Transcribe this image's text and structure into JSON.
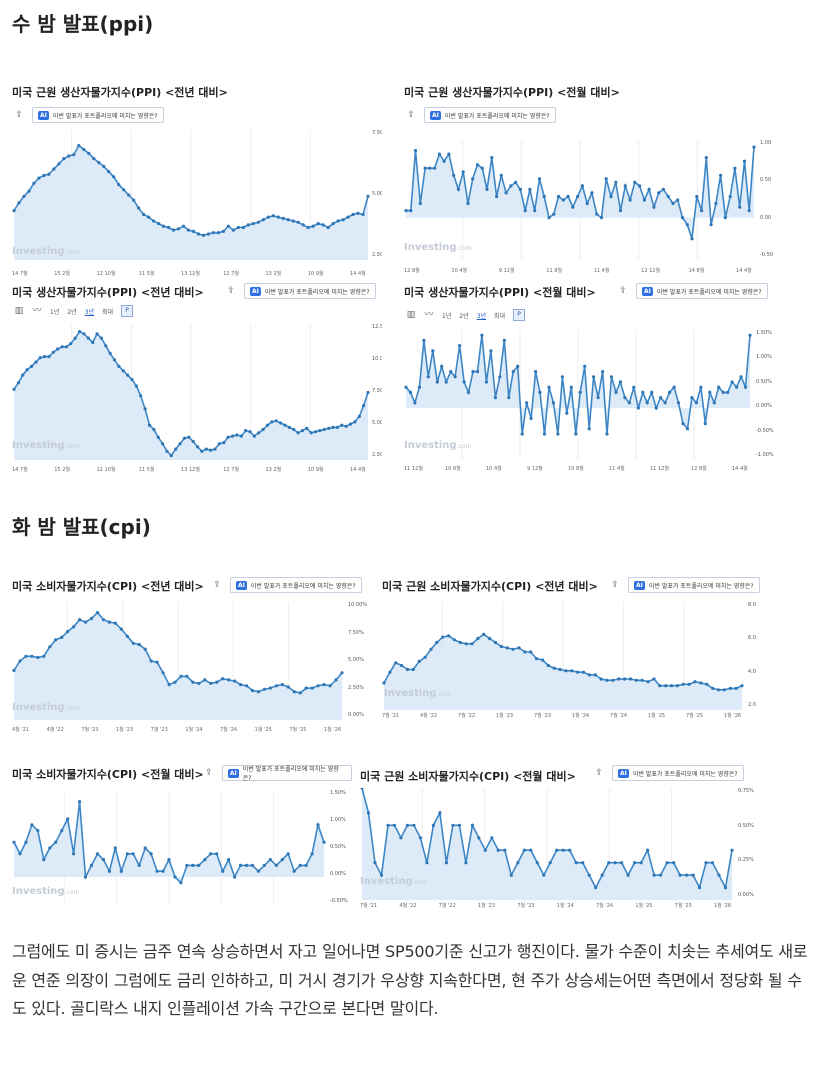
{
  "headings": {
    "ppi": "수 밤 발표(ppi)",
    "cpi": "화 밤 발표(cpi)"
  },
  "common": {
    "ai_badge": "AI",
    "ai_text": "이번 발표가 포트폴리오에 미치는 영향은?",
    "watermark": "Investing",
    "watermark_suffix": ".com",
    "icons": {
      "share": "share-icon",
      "bars": "bar-chart-icon",
      "line": "line-chart-icon"
    },
    "periods": [
      "1년",
      "2년",
      "3년",
      "최대"
    ],
    "p_button": "P",
    "colors": {
      "line": "#3d86c6",
      "fill": "#d7e8f8",
      "marker": "#2f76b5",
      "accent": "#2f6fe0"
    }
  },
  "panels": [
    {
      "title": "미국 근원 생산자물가지수(PPI) <전년 대비>",
      "y_ticks": [
        "7.50%",
        "5.00%",
        "2.50%"
      ],
      "x_ticks": [
        "14 7월",
        "15 2월",
        "12 10월",
        "11 5월",
        "13 12월",
        "12 7월",
        "13 2월",
        "10 9월",
        "14 4월"
      ],
      "chart_data": {
        "type": "area",
        "series": [
          {
            "values": [
              3.8,
              4.4,
              4.9,
              5.3,
              5.9,
              6.3,
              6.5,
              6.6,
              7.0,
              7.4,
              7.8,
              8.0,
              8.1,
              8.8,
              8.5,
              8.2,
              7.8,
              7.5,
              7.2,
              6.8,
              6.4,
              5.8,
              5.4,
              5.0,
              4.6,
              4.0,
              3.5,
              3.3,
              3.0,
              2.8,
              2.6,
              2.5,
              2.3,
              2.4,
              2.6,
              2.3,
              2.2,
              2.0,
              1.9,
              2.0,
              2.1,
              2.1,
              2.2,
              2.6,
              2.3,
              2.5,
              2.5,
              2.7,
              2.8,
              2.9,
              3.1,
              3.3,
              3.4,
              3.3,
              3.2,
              3.1,
              3.0,
              2.9,
              2.7,
              2.5,
              2.6,
              2.8,
              2.7,
              2.5,
              2.8,
              3.0,
              3.1,
              3.3,
              3.5,
              3.6,
              3.5,
              4.9
            ]
          }
        ]
      }
    },
    {
      "title": "미국 근원 생산자물가지수(PPI) <전월 대비>",
      "y_ticks": [
        "1.00",
        "0.50",
        "0.00",
        "-0.50"
      ],
      "x_ticks": [
        "12 8월",
        "10 4월",
        "9 12월",
        "11 8월",
        "11 4월",
        "12 12월",
        "14 8월",
        "14 4월"
      ],
      "chart_data": {
        "type": "area",
        "series": [
          {
            "values": [
              0.1,
              0.1,
              0.95,
              0.2,
              0.7,
              0.7,
              0.7,
              0.9,
              0.8,
              0.9,
              0.6,
              0.4,
              0.65,
              0.2,
              0.55,
              0.75,
              0.7,
              0.4,
              0.85,
              0.3,
              0.6,
              0.35,
              0.45,
              0.5,
              0.4,
              0.1,
              0.4,
              0.1,
              0.55,
              0.3,
              0.0,
              0.05,
              0.3,
              0.25,
              0.3,
              0.15,
              0.3,
              0.45,
              0.2,
              0.35,
              0.05,
              0.0,
              0.55,
              0.3,
              0.5,
              0.1,
              0.45,
              0.25,
              0.5,
              0.45,
              0.25,
              0.4,
              0.15,
              0.35,
              0.4,
              0.3,
              0.2,
              0.25,
              0.0,
              -0.1,
              -0.3,
              0.3,
              0.1,
              0.85,
              -0.1,
              0.2,
              0.6,
              0.0,
              0.3,
              0.7,
              0.15,
              0.8,
              0.1,
              1.0
            ]
          }
        ]
      }
    },
    {
      "title": "미국 생산자물가지수(PPI) <전년 대비>",
      "y_ticks": [
        "12.5",
        "10.0",
        "7.50",
        "5.00",
        "2.50"
      ],
      "x_ticks": [
        "14 7월",
        "15 2월",
        "12 10월",
        "11 5월",
        "13 12월",
        "12 7월",
        "13 2월",
        "10 9월",
        "14 4월"
      ],
      "chart_data": {
        "type": "area",
        "series": [
          {
            "values": [
              6.5,
              7.1,
              7.8,
              8.3,
              8.6,
              9.0,
              9.4,
              9.5,
              9.5,
              9.9,
              10.2,
              10.4,
              10.4,
              10.7,
              11.2,
              11.8,
              11.6,
              11.2,
              10.8,
              11.6,
              11.2,
              10.5,
              9.8,
              9.2,
              8.6,
              8.2,
              7.8,
              7.4,
              6.8,
              5.9,
              4.7,
              3.2,
              2.8,
              2.1,
              1.5,
              0.8,
              0.4,
              1.0,
              1.5,
              2.0,
              2.1,
              1.7,
              1.2,
              0.8,
              1.0,
              0.9,
              1.0,
              1.5,
              1.6,
              2.1,
              2.2,
              2.3,
              2.2,
              2.7,
              2.6,
              2.2,
              2.5,
              2.8,
              3.2,
              3.5,
              3.6,
              3.4,
              3.2,
              3.0,
              2.8,
              2.5,
              2.7,
              2.9,
              2.5,
              2.6,
              2.7,
              2.8,
              2.9,
              3.0,
              3.0,
              3.2,
              3.1,
              3.3,
              3.5,
              4.0,
              5.0,
              6.2
            ]
          }
        ]
      }
    },
    {
      "title": "미국 생산자물가지수(PPI) <전월 대비>",
      "y_ticks": [
        "1.50%",
        "1.00%",
        "0.50%",
        "0.00%",
        "-0.50%",
        "-1.00%"
      ],
      "x_ticks": [
        "11 12월",
        "10 8월",
        "10 4월",
        "9 12월",
        "10 8월",
        "11 4월",
        "11 12월",
        "12 8월",
        "14 4월"
      ],
      "chart_data": {
        "type": "area",
        "series": [
          {
            "values": [
              0.4,
              0.3,
              0.1,
              0.4,
              1.3,
              0.6,
              1.1,
              0.5,
              0.8,
              0.5,
              0.7,
              0.6,
              1.2,
              0.5,
              0.3,
              0.7,
              0.7,
              1.4,
              0.5,
              1.1,
              0.2,
              0.6,
              1.3,
              0.2,
              0.7,
              0.8,
              -0.5,
              0.1,
              -0.2,
              0.7,
              0.3,
              -0.5,
              0.4,
              0.1,
              -0.5,
              0.6,
              -0.1,
              0.4,
              -0.5,
              0.3,
              0.8,
              -0.4,
              0.6,
              0.2,
              0.7,
              -0.5,
              0.6,
              0.3,
              0.5,
              0.2,
              0.1,
              0.4,
              0.0,
              0.3,
              0.1,
              0.3,
              0.0,
              0.2,
              0.1,
              0.3,
              0.4,
              0.1,
              -0.3,
              -0.4,
              0.2,
              0.1,
              0.4,
              -0.3,
              0.3,
              0.1,
              0.4,
              0.3,
              0.3,
              0.5,
              0.4,
              0.6,
              0.4,
              1.4
            ]
          }
        ]
      }
    },
    {
      "title": "미국 소비자물가지수(CPI) <전년 대비>",
      "y_ticks": [
        "10.00%",
        "7.50%",
        "5.00%",
        "2.50%",
        "0.00%"
      ],
      "x_ticks": [
        "4월 '21",
        "4월 '22",
        "7월 '23",
        "1월 '23",
        "7월 '23",
        "1월 '24",
        "7월 '24",
        "1월 '25",
        "7월 '25",
        "1월 '26"
      ],
      "chart_data": {
        "type": "area",
        "series": [
          {
            "values": [
              4.2,
              5.0,
              5.4,
              5.4,
              5.3,
              5.4,
              6.2,
              6.8,
              7.0,
              7.5,
              7.9,
              8.5,
              8.3,
              8.6,
              9.1,
              8.5,
              8.3,
              8.2,
              7.7,
              7.1,
              6.5,
              6.4,
              6.0,
              5.0,
              4.9,
              4.0,
              3.0,
              3.2,
              3.7,
              3.7,
              3.2,
              3.1,
              3.4,
              3.1,
              3.2,
              3.5,
              3.4,
              3.3,
              3.0,
              2.9,
              2.5,
              2.4,
              2.6,
              2.7,
              2.9,
              3.0,
              2.8,
              2.4,
              2.3,
              2.7,
              2.7,
              2.9,
              3.0,
              2.9,
              3.4,
              4.0
            ]
          }
        ]
      }
    },
    {
      "title": "미국 근원 소비자물가지수(CPI) <전년 대비>",
      "y_ticks": [
        "8.0",
        "6.0",
        "4.0",
        "2.0"
      ],
      "x_ticks": [
        "7월 '21",
        "4월 '22",
        "7월 '22",
        "1월 '23",
        "7월 '23",
        "1월 '24",
        "7월 '24",
        "1월 '25",
        "7월 '25",
        "1월 '26"
      ],
      "chart_data": {
        "type": "area",
        "series": [
          {
            "values": [
              3.0,
              3.8,
              4.5,
              4.3,
              4.0,
              4.0,
              4.6,
              4.9,
              5.5,
              6.0,
              6.4,
              6.5,
              6.2,
              6.0,
              5.9,
              5.9,
              6.3,
              6.6,
              6.3,
              6.0,
              5.7,
              5.6,
              5.5,
              5.6,
              5.3,
              5.3,
              4.8,
              4.7,
              4.3,
              4.1,
              4.0,
              3.9,
              3.9,
              3.8,
              3.8,
              3.6,
              3.6,
              3.3,
              3.2,
              3.2,
              3.3,
              3.3,
              3.3,
              3.2,
              3.2,
              3.1,
              3.3,
              2.8,
              2.8,
              2.8,
              2.8,
              2.9,
              2.9,
              3.1,
              3.0,
              2.9,
              2.6,
              2.5,
              2.5,
              2.6,
              2.6,
              2.8
            ]
          }
        ]
      }
    },
    {
      "title": "미국 소비자물가지수(CPI) <전월 대비>",
      "y_ticks": [
        "1.50%",
        "1.00%",
        "0.50%",
        "0.00%",
        "-0.50%"
      ],
      "x_ticks": [],
      "chart_data": {
        "type": "area",
        "series": [
          {
            "values": [
              0.6,
              0.4,
              0.6,
              0.9,
              0.8,
              0.3,
              0.5,
              0.6,
              0.8,
              1.0,
              0.4,
              1.3,
              0.0,
              0.2,
              0.4,
              0.3,
              0.1,
              0.5,
              0.1,
              0.4,
              0.4,
              0.2,
              0.5,
              0.4,
              0.1,
              0.1,
              0.3,
              0.0,
              -0.1,
              0.2,
              0.2,
              0.2,
              0.3,
              0.4,
              0.4,
              0.1,
              0.3,
              0.0,
              0.2,
              0.2,
              0.2,
              0.1,
              0.2,
              0.3,
              0.2,
              0.3,
              0.4,
              0.1,
              0.2,
              0.2,
              0.4,
              0.9,
              0.6
            ]
          }
        ]
      }
    },
    {
      "title": "미국 근원 소비자물가지수(CPI) <전월 대비>",
      "y_ticks": [
        "0.75%",
        "0.50%",
        "0.25%",
        "0.00%"
      ],
      "x_ticks": [
        "7월 '21",
        "4월 '22",
        "7월 '22",
        "1월 '23",
        "7월 '23",
        "1월 '24",
        "7월 '24",
        "1월 '25",
        "7월 '25",
        "1월 '26"
      ],
      "chart_data": {
        "type": "area",
        "series": [
          {
            "values": [
              0.9,
              0.7,
              0.3,
              0.2,
              0.6,
              0.6,
              0.5,
              0.6,
              0.6,
              0.5,
              0.3,
              0.6,
              0.7,
              0.3,
              0.6,
              0.6,
              0.3,
              0.6,
              0.5,
              0.4,
              0.5,
              0.4,
              0.4,
              0.2,
              0.3,
              0.4,
              0.4,
              0.3,
              0.2,
              0.3,
              0.4,
              0.4,
              0.4,
              0.3,
              0.3,
              0.2,
              0.1,
              0.2,
              0.3,
              0.3,
              0.3,
              0.2,
              0.3,
              0.3,
              0.4,
              0.2,
              0.2,
              0.3,
              0.3,
              0.2,
              0.2,
              0.2,
              0.1,
              0.3,
              0.3,
              0.2,
              0.1,
              0.4
            ]
          }
        ]
      }
    }
  ],
  "paragraph": "그럼에도 미 증시는 금주 연속 상승하면서 자고 일어나면 SP500기준 신고가 행진이다. 물가 수준이 치솟는 추세여도 새로운 연준 의장이 그럼에도 금리 인하하고, 미 거시 경기가 우상향 지속한다면, 현 주가 상승세는어떤 측면에서 정당화 될 수도 있다. 골디락스 내지 인플레이션 가속 구간으로 본다면 말이다."
}
